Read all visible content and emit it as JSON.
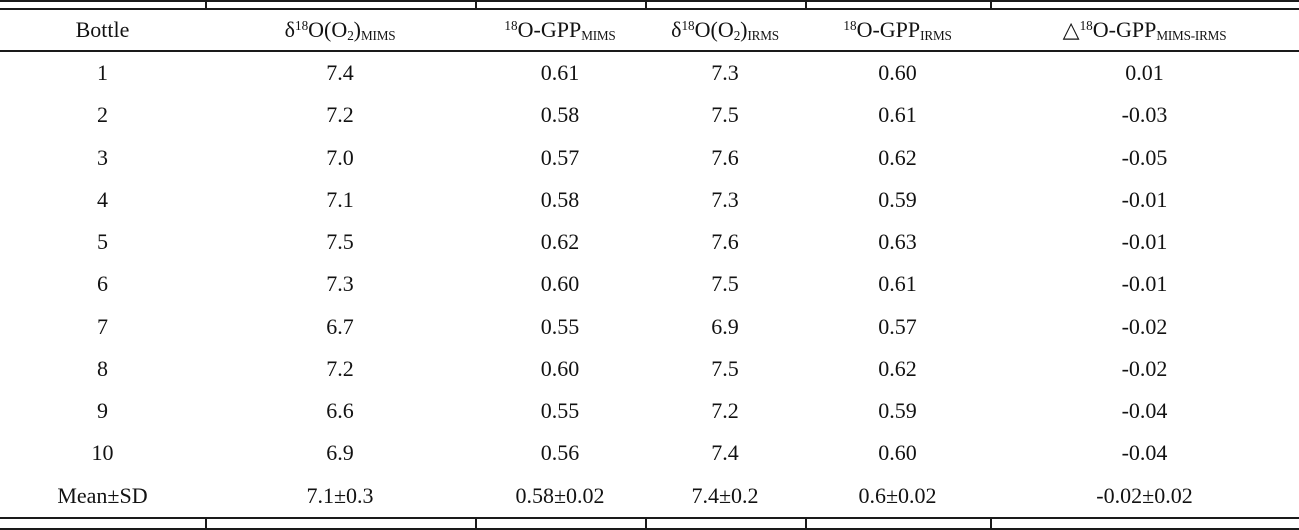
{
  "table": {
    "colors": {
      "text": "#121212",
      "rule": "#1a1a1a",
      "background": "#ffffff"
    },
    "columns": [
      {
        "name": "bottle",
        "segments": [
          {
            "t": "text",
            "v": "Bottle"
          }
        ]
      },
      {
        "name": "d18O-O2-MIMS",
        "segments": [
          {
            "t": "text",
            "v": "δ"
          },
          {
            "t": "sup",
            "v": "18"
          },
          {
            "t": "text",
            "v": "O(O"
          },
          {
            "t": "sub",
            "v": "2"
          },
          {
            "t": "text",
            "v": ")"
          },
          {
            "t": "sub",
            "v": "MIMS"
          }
        ]
      },
      {
        "name": "18O-GPP-MIMS",
        "segments": [
          {
            "t": "sup",
            "v": "18"
          },
          {
            "t": "text",
            "v": "O-GPP"
          },
          {
            "t": "sub",
            "v": "MIMS"
          }
        ]
      },
      {
        "name": "d18O-O2-IRMS",
        "segments": [
          {
            "t": "text",
            "v": "δ"
          },
          {
            "t": "sup",
            "v": "18"
          },
          {
            "t": "text",
            "v": "O(O"
          },
          {
            "t": "sub",
            "v": "2"
          },
          {
            "t": "text",
            "v": ")"
          },
          {
            "t": "sub",
            "v": "IRMS"
          }
        ]
      },
      {
        "name": "18O-GPP-IRMS",
        "segments": [
          {
            "t": "sup",
            "v": "18"
          },
          {
            "t": "text",
            "v": "O-GPP"
          },
          {
            "t": "sub",
            "v": "IRMS"
          }
        ]
      },
      {
        "name": "delta-18O-GPP-MIMS-IRMS",
        "segments": [
          {
            "t": "text",
            "v": "△"
          },
          {
            "t": "sup",
            "v": "18"
          },
          {
            "t": "text",
            "v": "O-GPP"
          },
          {
            "t": "sub",
            "v": "MIMS-IRMS"
          }
        ]
      }
    ],
    "rows": [
      [
        "1",
        "7.4",
        "0.61",
        "7.3",
        "0.60",
        "0.01"
      ],
      [
        "2",
        "7.2",
        "0.58",
        "7.5",
        "0.61",
        "-0.03"
      ],
      [
        "3",
        "7.0",
        "0.57",
        "7.6",
        "0.62",
        "-0.05"
      ],
      [
        "4",
        "7.1",
        "0.58",
        "7.3",
        "0.59",
        "-0.01"
      ],
      [
        "5",
        "7.5",
        "0.62",
        "7.6",
        "0.63",
        "-0.01"
      ],
      [
        "6",
        "7.3",
        "0.60",
        "7.5",
        "0.61",
        "-0.01"
      ],
      [
        "7",
        "6.7",
        "0.55",
        "6.9",
        "0.57",
        "-0.02"
      ],
      [
        "8",
        "7.2",
        "0.60",
        "7.5",
        "0.62",
        "-0.02"
      ],
      [
        "9",
        "6.6",
        "0.55",
        "7.2",
        "0.59",
        "-0.04"
      ],
      [
        "10",
        "6.9",
        "0.56",
        "7.4",
        "0.60",
        "-0.04"
      ],
      [
        "Mean±SD",
        "7.1±0.3",
        "0.58±0.02",
        "7.4±0.2",
        "0.6±0.02",
        "-0.02±0.02"
      ]
    ]
  },
  "chart_data": {
    "type": "table",
    "title": "",
    "columns": [
      "Bottle",
      "δ18O(O2)MIMS",
      "18O-GPPMIMS",
      "δ18O(O2)IRMS",
      "18O-GPPIRMS",
      "Δ18O-GPPMIMS-IRMS"
    ],
    "rows": [
      [
        "1",
        7.4,
        0.61,
        7.3,
        0.6,
        0.01
      ],
      [
        "2",
        7.2,
        0.58,
        7.5,
        0.61,
        -0.03
      ],
      [
        "3",
        7.0,
        0.57,
        7.6,
        0.62,
        -0.05
      ],
      [
        "4",
        7.1,
        0.58,
        7.3,
        0.59,
        -0.01
      ],
      [
        "5",
        7.5,
        0.62,
        7.6,
        0.63,
        -0.01
      ],
      [
        "6",
        7.3,
        0.6,
        7.5,
        0.61,
        -0.01
      ],
      [
        "7",
        6.7,
        0.55,
        6.9,
        0.57,
        -0.02
      ],
      [
        "8",
        7.2,
        0.6,
        7.5,
        0.62,
        -0.02
      ],
      [
        "9",
        6.6,
        0.55,
        7.2,
        0.59,
        -0.04
      ],
      [
        "10",
        6.9,
        0.56,
        7.4,
        0.6,
        -0.04
      ],
      [
        "Mean±SD",
        "7.1±0.3",
        "0.58±0.02",
        "7.4±0.2",
        "0.6±0.02",
        "-0.02±0.02"
      ]
    ]
  }
}
